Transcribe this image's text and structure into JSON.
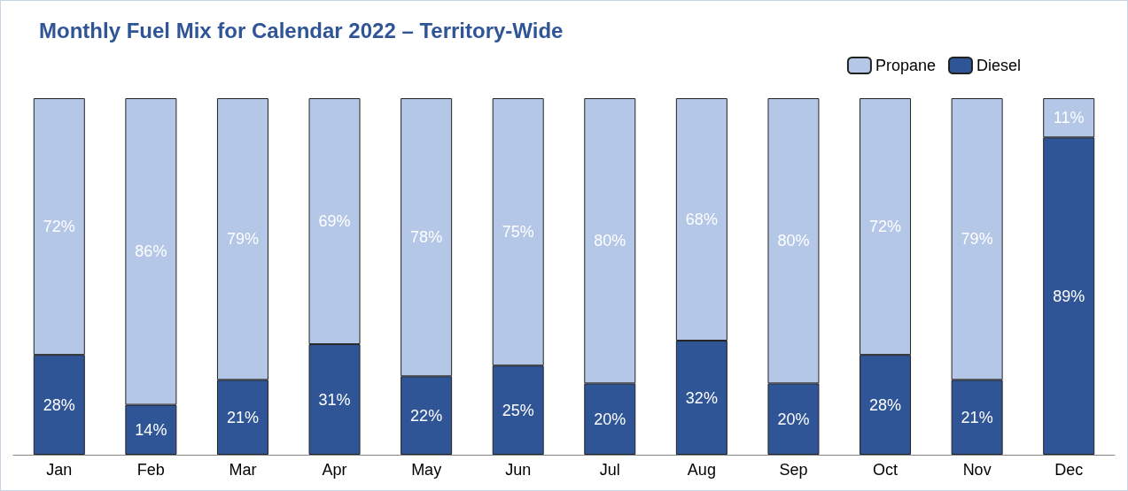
{
  "chart_data": {
    "type": "bar",
    "title": "Monthly Fuel Mix for Calendar 2022 – Territory-Wide",
    "categories": [
      "Jan",
      "Feb",
      "Mar",
      "Apr",
      "May",
      "Jun",
      "Jul",
      "Aug",
      "Sep",
      "Oct",
      "Nov",
      "Dec"
    ],
    "series": [
      {
        "name": "Diesel",
        "color": "#2f5597",
        "values": [
          28,
          14,
          21,
          31,
          22,
          25,
          20,
          32,
          20,
          28,
          21,
          89
        ],
        "value_labels": [
          "28%",
          "14%",
          "21%",
          "31%",
          "22%",
          "25%",
          "20%",
          "32%",
          "20%",
          "28%",
          "21%",
          "89%"
        ]
      },
      {
        "name": "Propane",
        "color": "#b4c7e7",
        "values": [
          72,
          86,
          79,
          69,
          78,
          75,
          80,
          68,
          80,
          72,
          79,
          11
        ],
        "value_labels": [
          "72%",
          "86%",
          "79%",
          "69%",
          "78%",
          "75%",
          "80%",
          "68%",
          "80%",
          "72%",
          "79%",
          "11%"
        ]
      }
    ],
    "stacked": true,
    "legend": "top right",
    "grid": false,
    "tick_labels": "x"
  }
}
